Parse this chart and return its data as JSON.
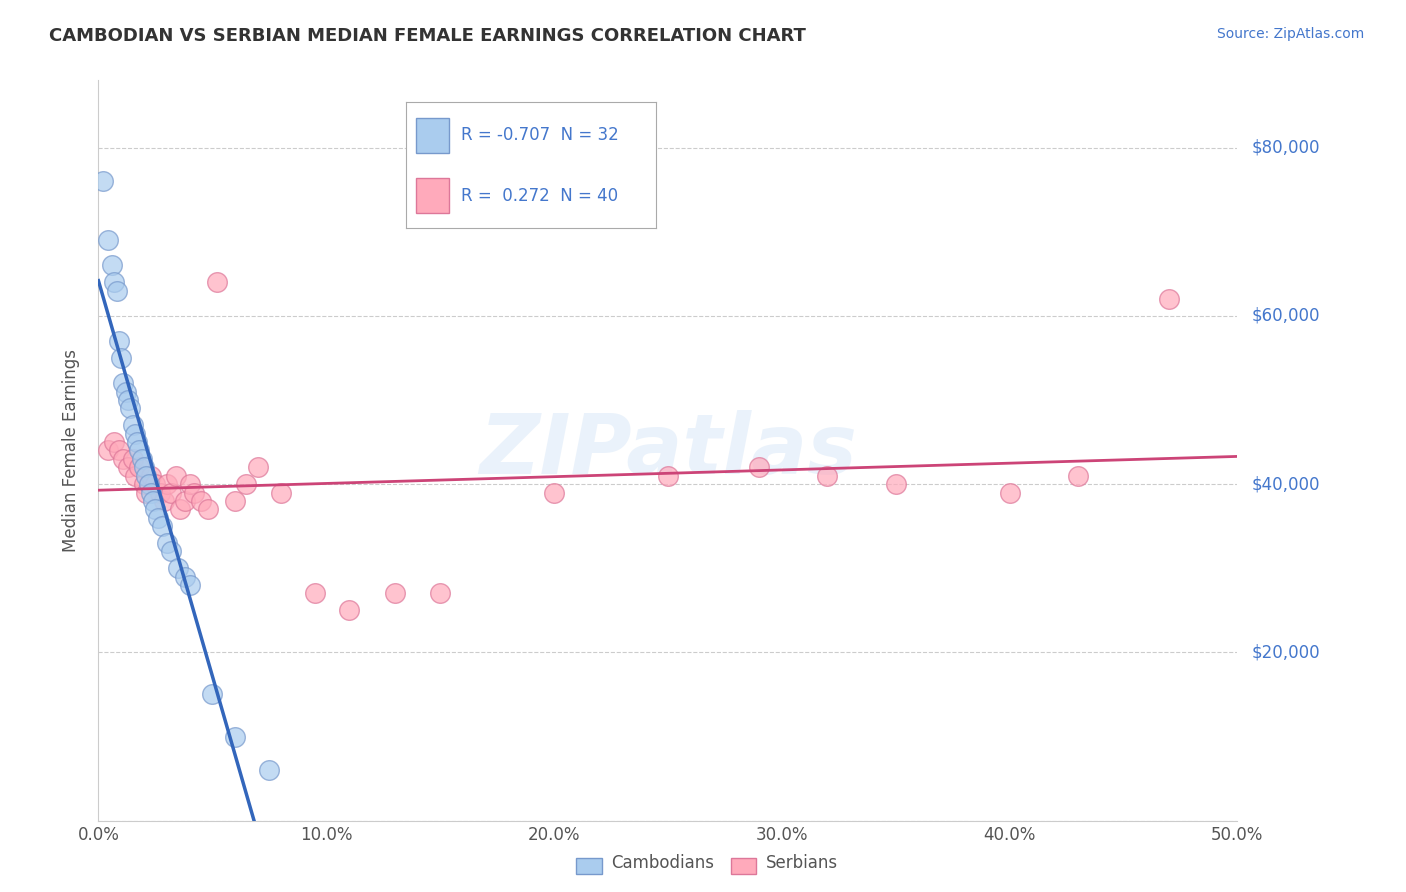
{
  "title": "CAMBODIAN VS SERBIAN MEDIAN FEMALE EARNINGS CORRELATION CHART",
  "source": "Source: ZipAtlas.com",
  "ylabel": "Median Female Earnings",
  "xlim": [
    0.0,
    0.5
  ],
  "ylim": [
    0,
    88000
  ],
  "yticks": [
    0,
    20000,
    40000,
    60000,
    80000
  ],
  "ytick_labels": [
    "",
    "$20,000",
    "$40,000",
    "$60,000",
    "$80,000"
  ],
  "xticks": [
    0.0,
    0.1,
    0.2,
    0.3,
    0.4,
    0.5
  ],
  "xtick_labels": [
    "0.0%",
    "10.0%",
    "20.0%",
    "30.0%",
    "40.0%",
    "50.0%"
  ],
  "cambodian_color": "#aaccee",
  "cambodian_edge": "#7799cc",
  "serbian_color": "#ffaabb",
  "serbian_edge": "#dd7799",
  "line_cambodian_color": "#3366bb",
  "line_serbian_color": "#cc4477",
  "legend_r_cambodian": "-0.707",
  "legend_n_cambodian": "32",
  "legend_r_serbian": "0.272",
  "legend_n_serbian": "40",
  "title_color": "#333333",
  "source_color": "#4477cc",
  "axis_color": "#4477cc",
  "grid_color": "#cccccc",
  "watermark": "ZIPatlas",
  "cambodian_x": [
    0.002,
    0.004,
    0.006,
    0.007,
    0.008,
    0.009,
    0.01,
    0.011,
    0.012,
    0.013,
    0.014,
    0.015,
    0.016,
    0.017,
    0.018,
    0.019,
    0.02,
    0.021,
    0.022,
    0.023,
    0.024,
    0.025,
    0.026,
    0.028,
    0.03,
    0.032,
    0.035,
    0.038,
    0.04,
    0.05,
    0.06,
    0.075
  ],
  "cambodian_y": [
    76000,
    69000,
    66000,
    64000,
    63000,
    57000,
    55000,
    52000,
    51000,
    50000,
    49000,
    47000,
    46000,
    45000,
    44000,
    43000,
    42000,
    41000,
    40000,
    39000,
    38000,
    37000,
    36000,
    35000,
    33000,
    32000,
    30000,
    29000,
    28000,
    15000,
    10000,
    6000
  ],
  "serbian_x": [
    0.004,
    0.007,
    0.009,
    0.011,
    0.013,
    0.015,
    0.016,
    0.018,
    0.02,
    0.021,
    0.023,
    0.025,
    0.027,
    0.029,
    0.03,
    0.032,
    0.034,
    0.036,
    0.038,
    0.04,
    0.042,
    0.045,
    0.048,
    0.052,
    0.06,
    0.065,
    0.07,
    0.08,
    0.095,
    0.11,
    0.13,
    0.15,
    0.2,
    0.25,
    0.29,
    0.32,
    0.35,
    0.4,
    0.43,
    0.47
  ],
  "serbian_y": [
    44000,
    45000,
    44000,
    43000,
    42000,
    43000,
    41000,
    42000,
    40000,
    39000,
    41000,
    40000,
    39000,
    38000,
    40000,
    39000,
    41000,
    37000,
    38000,
    40000,
    39000,
    38000,
    37000,
    64000,
    38000,
    40000,
    42000,
    39000,
    27000,
    25000,
    27000,
    27000,
    39000,
    41000,
    42000,
    41000,
    40000,
    39000,
    41000,
    62000
  ],
  "cam_line_x0": 0.0,
  "cam_line_x1": 0.115,
  "ser_line_x0": 0.0,
  "ser_line_x1": 0.5
}
